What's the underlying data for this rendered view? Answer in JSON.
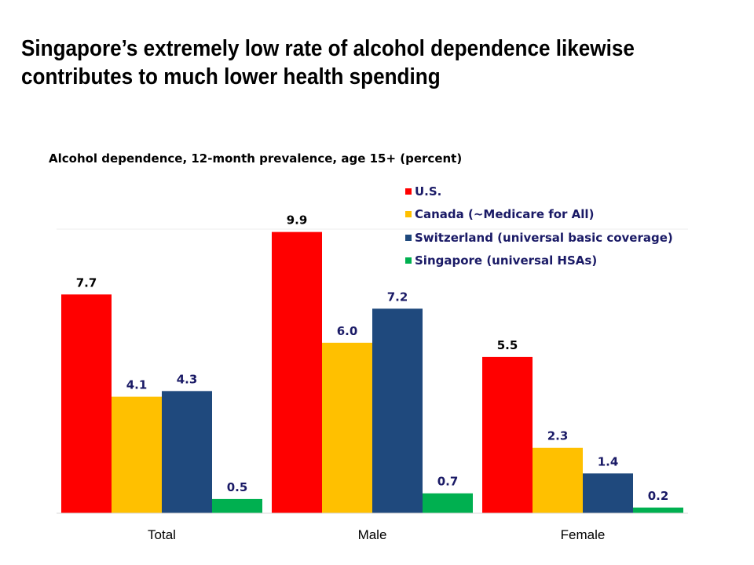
{
  "title": "Singapore’s extremely low rate of alcohol dependence likewise contributes to much lower health spending",
  "chart_data": {
    "type": "bar",
    "subtitle": "Alcohol dependence, 12-month prevalence, age 15+ (percent)",
    "categories": [
      "Total",
      "Male",
      "Female"
    ],
    "series": [
      {
        "name": "U.S.",
        "color": "#ff0000",
        "label_color": "#000000",
        "values": [
          7.7,
          9.9,
          5.5
        ]
      },
      {
        "name": "Canada (~Medicare for All)",
        "color": "#ffc000",
        "label_color": "#1a1a66",
        "values": [
          4.1,
          6.0,
          2.3
        ]
      },
      {
        "name": "Switzerland (universal basic coverage)",
        "color": "#1f497d",
        "label_color": "#1a1a66",
        "values": [
          4.3,
          7.2,
          1.4
        ]
      },
      {
        "name": "Singapore (universal HSAs)",
        "color": "#00b050",
        "label_color": "#1a1a66",
        "values": [
          0.5,
          0.7,
          0.2
        ]
      }
    ],
    "ylim": [
      0,
      10
    ],
    "grid": true,
    "legend": "top-right",
    "xlabel": "",
    "ylabel": ""
  }
}
